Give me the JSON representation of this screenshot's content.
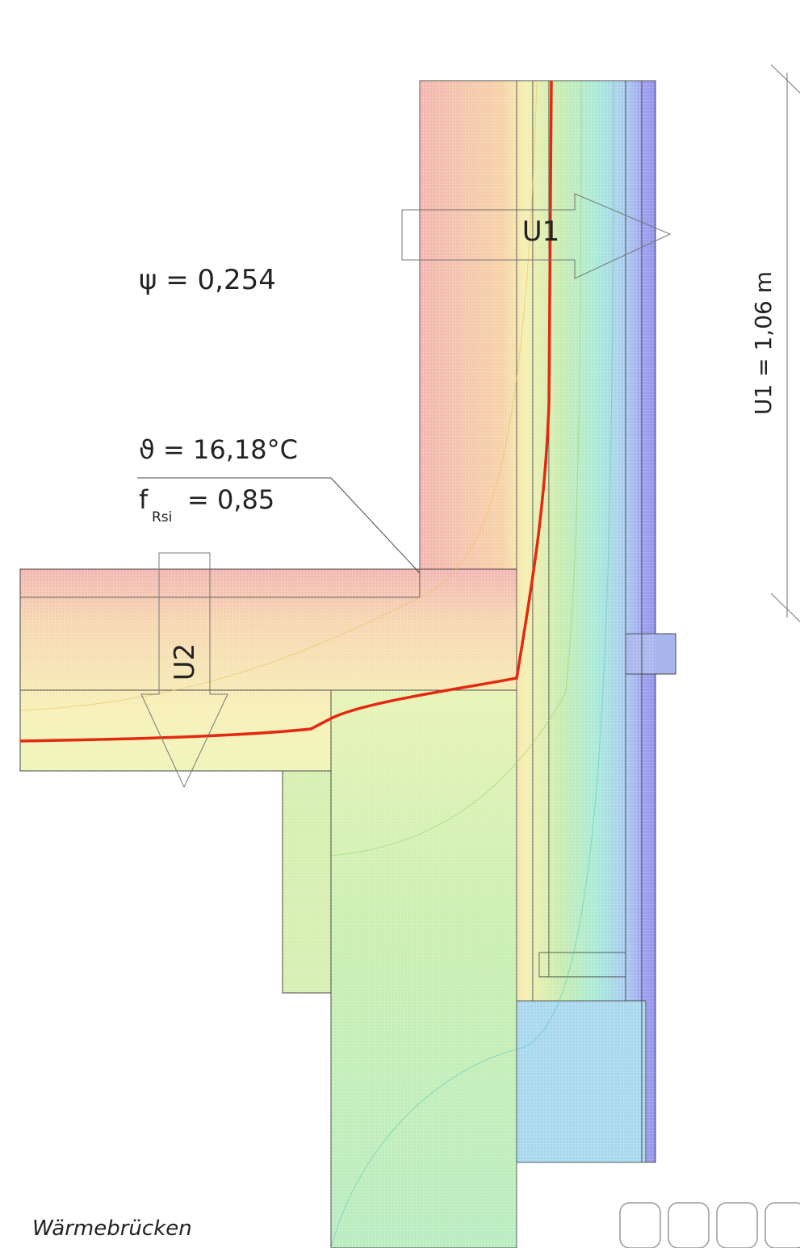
{
  "annotations": {
    "psi": "ψ = 0,254",
    "theta": "ϑ = 16,18°C",
    "f_symbol": "f",
    "f_subscript": "Rsi",
    "f_value": "= 0,85",
    "u1_arrow": "U1",
    "u2_arrow": "U2",
    "dimension": "U1 = 1,06 m"
  },
  "footer": {
    "caption": "Wärmebrücken"
  }
}
